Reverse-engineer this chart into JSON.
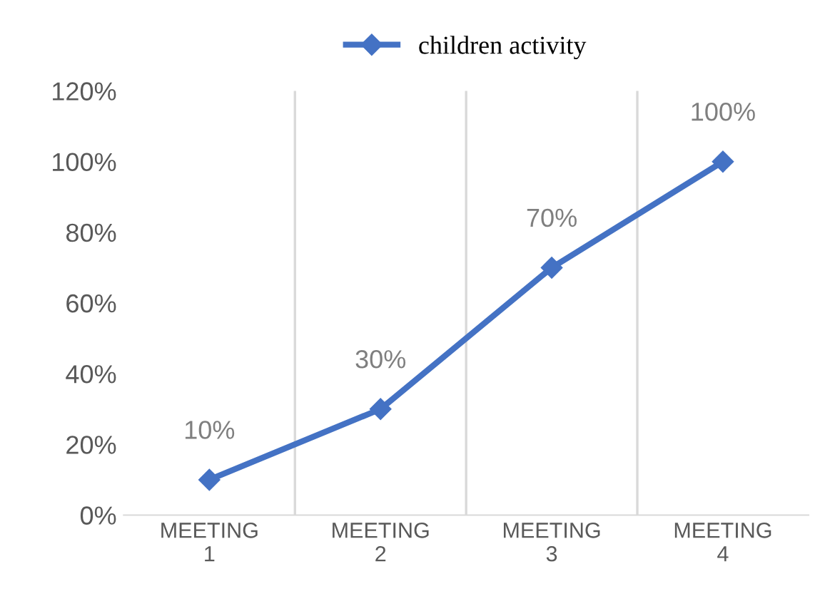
{
  "chart_data": {
    "type": "line",
    "categories": [
      "MEETING 1",
      "MEETING 2",
      "MEETING 3",
      "MEETING 4"
    ],
    "series": [
      {
        "name": "children activity",
        "color": "#4472c4",
        "values": [
          10,
          30,
          70,
          100
        ],
        "value_labels": [
          "10%",
          "30%",
          "70%",
          "100%"
        ]
      }
    ],
    "ylim": [
      0,
      120
    ],
    "yticks": [
      {
        "value": 0,
        "label": "0%"
      },
      {
        "value": 20,
        "label": "20%"
      },
      {
        "value": 40,
        "label": "40%"
      },
      {
        "value": 60,
        "label": "60%"
      },
      {
        "value": 80,
        "label": "80%"
      },
      {
        "value": 100,
        "label": "100%"
      },
      {
        "value": 120,
        "label": "120%"
      }
    ],
    "grid": "x",
    "legend": "top",
    "marker": "diamond",
    "line_style": "solid"
  }
}
